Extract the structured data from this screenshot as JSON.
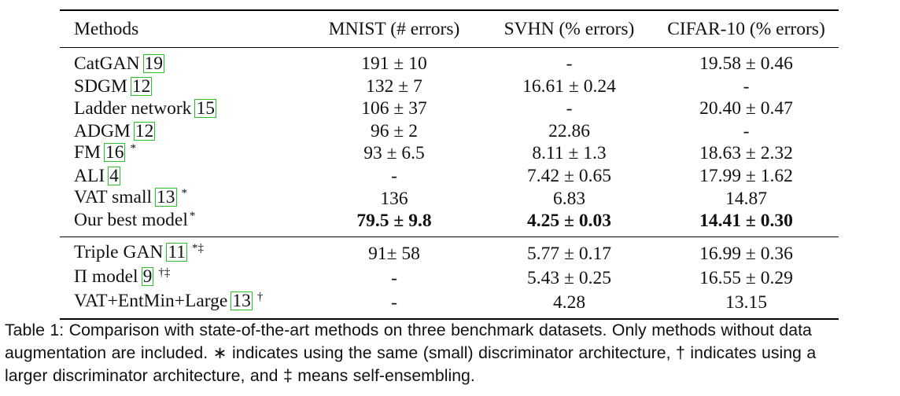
{
  "table": {
    "headers": [
      "Methods",
      "MNIST (# errors)",
      "SVHN (% errors)",
      "CIFAR-10 (% errors)"
    ],
    "groups": [
      {
        "rows": [
          {
            "method": "CatGAN",
            "ref": "19",
            "mark": "",
            "mnist": "191 ± 10",
            "svhn": "-",
            "cifar": "19.58 ± 0.46",
            "bold": false
          },
          {
            "method": "SDGM",
            "ref": "12",
            "mark": "",
            "mnist": "132 ± 7",
            "svhn": "16.61 ± 0.24",
            "cifar": "-",
            "bold": false
          },
          {
            "method": "Ladder network",
            "ref": "15",
            "mark": "",
            "mnist": "106 ± 37",
            "svhn": "-",
            "cifar": "20.40 ± 0.47",
            "bold": false
          },
          {
            "method": "ADGM",
            "ref": "12",
            "mark": "",
            "mnist": "96 ± 2",
            "svhn": "22.86",
            "cifar": "-",
            "bold": false
          },
          {
            "method": "FM",
            "ref": "16",
            "mark": "*",
            "mnist": "93 ± 6.5",
            "svhn": "8.11 ± 1.3",
            "cifar": "18.63 ± 2.32",
            "bold": false
          },
          {
            "method": "ALI",
            "ref": "4",
            "mark": "",
            "mnist": "-",
            "svhn": "7.42 ± 0.65",
            "cifar": "17.99 ± 1.62",
            "bold": false
          },
          {
            "method": "VAT small",
            "ref": "13",
            "mark": "*",
            "mnist": "136",
            "svhn": "6.83",
            "cifar": "14.87",
            "bold": false
          },
          {
            "method": "Our best model",
            "ref": "",
            "mark": "*",
            "mnist": "79.5 ± 9.8",
            "svhn": "4.25 ± 0.03",
            "cifar": "14.41 ± 0.30",
            "bold": true
          }
        ]
      },
      {
        "rows": [
          {
            "method": "Triple GAN",
            "ref": "11",
            "mark": "*‡",
            "mnist": "91± 58",
            "svhn": "5.77 ± 0.17",
            "cifar": "16.99 ± 0.36",
            "bold": false
          },
          {
            "method": "Π model",
            "ref": "9",
            "mark": "†‡",
            "mnist": "-",
            "svhn": "5.43 ± 0.25",
            "cifar": "16.55 ± 0.29",
            "bold": false
          },
          {
            "method": "VAT+EntMin+Large",
            "ref": "13",
            "mark": "†",
            "mnist": "-",
            "svhn": "4.28",
            "cifar": "13.15",
            "bold": false
          }
        ]
      }
    ]
  },
  "caption": {
    "line1": "Table 1: Comparison with state-of-the-art methods on three benchmark datasets. Only methods without data",
    "line2": "augmentation are included. ∗ indicates using the same (small) discriminator architecture, † indicates using a",
    "line3": "larger discriminator architecture, and ‡ means self-ensembling."
  }
}
